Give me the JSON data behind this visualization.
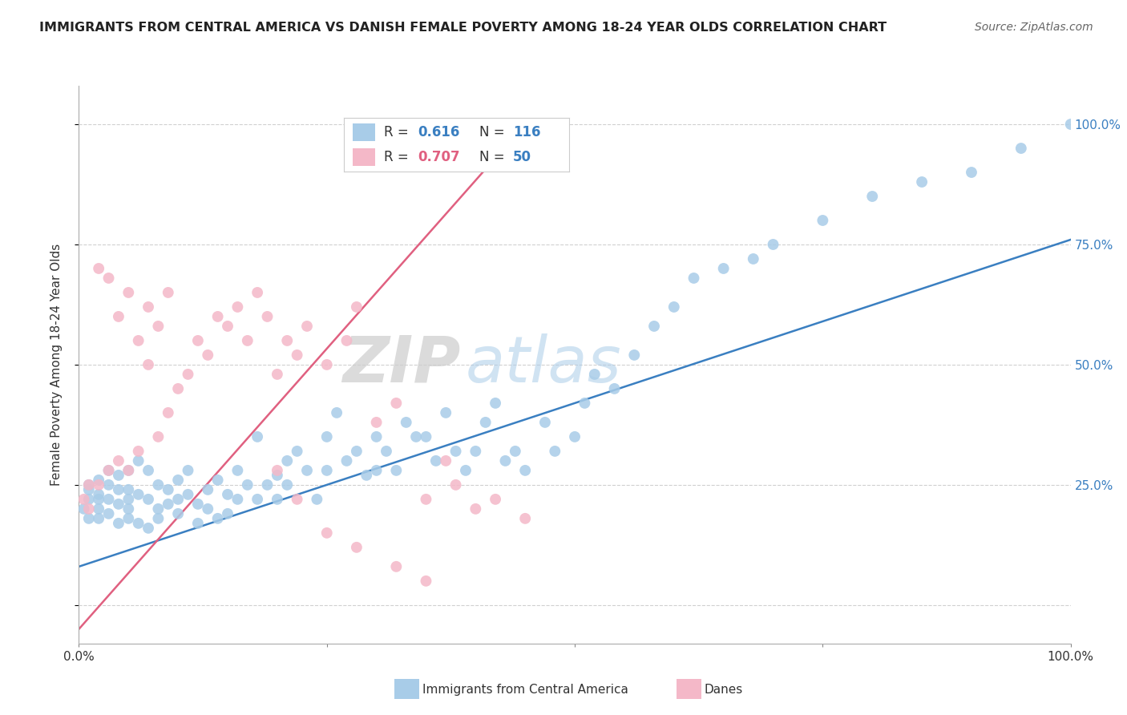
{
  "title": "IMMIGRANTS FROM CENTRAL AMERICA VS DANISH FEMALE POVERTY AMONG 18-24 YEAR OLDS CORRELATION CHART",
  "source": "Source: ZipAtlas.com",
  "ylabel": "Female Poverty Among 18-24 Year Olds",
  "xlim": [
    0,
    100
  ],
  "ylim": [
    -8,
    108
  ],
  "ytick_positions": [
    0,
    25,
    50,
    75,
    100
  ],
  "blue_color": "#a8cce8",
  "pink_color": "#f4b8c8",
  "line_blue": "#3a7fc1",
  "line_pink": "#e06080",
  "watermark_zip": "ZIP",
  "watermark_atlas": "atlas",
  "blue_line_x": [
    0,
    100
  ],
  "blue_line_y": [
    8,
    76
  ],
  "pink_line_x": [
    0,
    45
  ],
  "pink_line_y": [
    -5,
    100
  ],
  "blue_scatter_x": [
    0.5,
    1,
    1,
    1,
    1,
    2,
    2,
    2,
    2,
    2,
    3,
    3,
    3,
    3,
    4,
    4,
    4,
    4,
    5,
    5,
    5,
    5,
    5,
    6,
    6,
    6,
    7,
    7,
    7,
    8,
    8,
    8,
    9,
    9,
    10,
    10,
    10,
    11,
    11,
    12,
    12,
    13,
    13,
    14,
    14,
    15,
    15,
    16,
    16,
    17,
    18,
    18,
    19,
    20,
    20,
    21,
    21,
    22,
    23,
    24,
    25,
    25,
    26,
    27,
    28,
    29,
    30,
    30,
    31,
    32,
    33,
    34,
    35,
    36,
    37,
    38,
    39,
    40,
    41,
    42,
    43,
    44,
    45,
    47,
    48,
    50,
    51,
    52,
    54,
    56,
    58,
    60,
    62,
    65,
    68,
    70,
    75,
    80,
    85,
    90,
    95,
    100
  ],
  "blue_scatter_y": [
    20,
    22,
    24,
    18,
    25,
    20,
    23,
    26,
    18,
    22,
    19,
    25,
    28,
    22,
    17,
    21,
    27,
    24,
    20,
    18,
    24,
    28,
    22,
    17,
    23,
    30,
    16,
    22,
    28,
    20,
    25,
    18,
    24,
    21,
    22,
    19,
    26,
    23,
    28,
    21,
    17,
    24,
    20,
    26,
    18,
    23,
    19,
    22,
    28,
    25,
    22,
    35,
    25,
    22,
    27,
    30,
    25,
    32,
    28,
    22,
    35,
    28,
    40,
    30,
    32,
    27,
    35,
    28,
    32,
    28,
    38,
    35,
    35,
    30,
    40,
    32,
    28,
    32,
    38,
    42,
    30,
    32,
    28,
    38,
    32,
    35,
    42,
    48,
    45,
    52,
    58,
    62,
    68,
    70,
    72,
    75,
    80,
    85,
    88,
    90,
    95,
    100
  ],
  "pink_scatter_x": [
    0.5,
    1,
    1,
    2,
    2,
    3,
    3,
    4,
    4,
    5,
    5,
    6,
    6,
    7,
    7,
    8,
    8,
    9,
    9,
    10,
    11,
    12,
    13,
    14,
    15,
    16,
    17,
    18,
    19,
    20,
    21,
    22,
    23,
    25,
    27,
    28,
    30,
    32,
    35,
    37,
    38,
    40,
    42,
    45,
    20,
    22,
    25,
    28,
    32,
    35
  ],
  "pink_scatter_y": [
    22,
    25,
    20,
    70,
    25,
    68,
    28,
    60,
    30,
    28,
    65,
    55,
    32,
    50,
    62,
    35,
    58,
    40,
    65,
    45,
    48,
    55,
    52,
    60,
    58,
    62,
    55,
    65,
    60,
    48,
    55,
    52,
    58,
    50,
    55,
    62,
    38,
    42,
    22,
    30,
    25,
    20,
    22,
    18,
    28,
    22,
    15,
    12,
    8,
    5
  ]
}
